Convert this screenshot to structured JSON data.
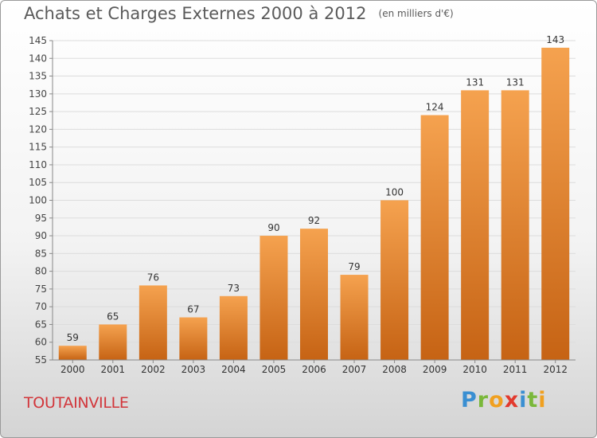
{
  "title": "Achats et Charges Externes 2000 à 2012",
  "unit": "(en milliers d'€)",
  "city": "TOUTAINVILLE",
  "brand": "Proxiti",
  "colors": {
    "bar_top": "#f5a24f",
    "bar_bottom": "#c66314",
    "title": "#5a5a5a",
    "city": "#d2353a"
  },
  "chart_data": {
    "type": "bar",
    "title": "Achats et Charges Externes 2000 à 2012",
    "categories": [
      "2000",
      "2001",
      "2002",
      "2003",
      "2004",
      "2005",
      "2006",
      "2007",
      "2008",
      "2009",
      "2010",
      "2011",
      "2012"
    ],
    "values": [
      59,
      65,
      76,
      67,
      73,
      90,
      92,
      79,
      100,
      124,
      131,
      131,
      143
    ],
    "ylim": [
      55,
      145
    ],
    "yticks": [
      55,
      60,
      65,
      70,
      75,
      80,
      85,
      90,
      95,
      100,
      105,
      110,
      115,
      120,
      125,
      130,
      135,
      140,
      145
    ],
    "grid": true,
    "data_labels": true
  }
}
